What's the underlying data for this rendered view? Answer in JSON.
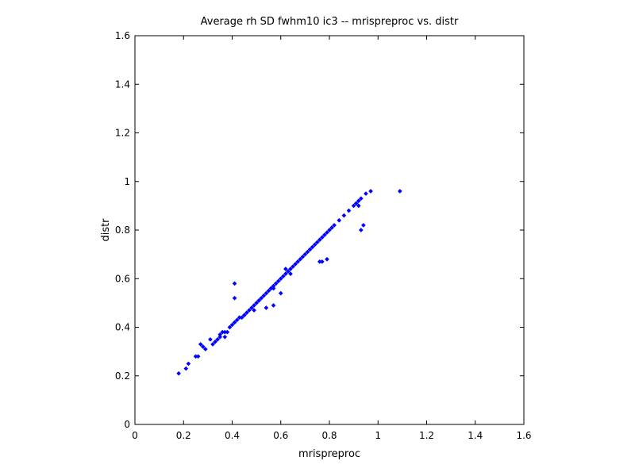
{
  "chart_data": {
    "type": "scatter",
    "title": "Average rh SD fwhm10 ic3 -- mrispreproc vs. distr",
    "xlabel": "mrispreproc",
    "ylabel": "distr",
    "xlim": [
      0,
      1.6
    ],
    "ylim": [
      0,
      1.6
    ],
    "xticks": [
      "0",
      "0.2",
      "0.4",
      "0.6",
      "0.8",
      "1",
      "1.2",
      "1.4",
      "1.6"
    ],
    "yticks": [
      "0",
      "0.2",
      "0.4",
      "0.6",
      "0.8",
      "1",
      "1.2",
      "1.4",
      "1.6"
    ],
    "grid": false,
    "marker_color": "#0000ff",
    "series": [
      {
        "x": [
          0.18,
          0.21,
          0.22,
          0.25,
          0.26,
          0.27,
          0.28,
          0.29,
          0.31,
          0.32,
          0.33,
          0.34,
          0.35,
          0.36,
          0.37,
          0.38,
          0.39,
          0.4,
          0.41,
          0.42,
          0.43,
          0.44,
          0.45,
          0.46,
          0.47,
          0.48,
          0.49,
          0.5,
          0.51,
          0.52,
          0.53,
          0.54,
          0.55,
          0.56,
          0.57,
          0.58,
          0.59,
          0.6,
          0.61,
          0.62,
          0.63,
          0.64,
          0.65,
          0.66,
          0.67,
          0.68,
          0.69,
          0.7,
          0.71,
          0.72,
          0.73,
          0.74,
          0.75,
          0.76,
          0.77,
          0.78,
          0.79,
          0.8,
          0.81,
          0.82,
          0.84,
          0.86,
          0.88,
          0.9,
          0.91,
          0.92,
          0.93,
          0.95,
          0.97,
          1.09,
          0.41,
          0.41,
          0.54,
          0.57,
          0.56,
          0.6,
          0.57,
          0.76,
          0.77,
          0.79,
          0.93,
          0.94,
          0.92,
          0.62,
          0.64,
          0.45,
          0.49,
          0.51,
          0.35,
          0.37
        ],
        "y": [
          0.21,
          0.23,
          0.25,
          0.28,
          0.28,
          0.33,
          0.32,
          0.31,
          0.35,
          0.33,
          0.34,
          0.35,
          0.36,
          0.38,
          0.38,
          0.38,
          0.4,
          0.41,
          0.42,
          0.43,
          0.44,
          0.44,
          0.45,
          0.46,
          0.47,
          0.48,
          0.49,
          0.5,
          0.51,
          0.52,
          0.53,
          0.54,
          0.55,
          0.56,
          0.57,
          0.58,
          0.59,
          0.6,
          0.61,
          0.62,
          0.63,
          0.64,
          0.65,
          0.66,
          0.67,
          0.68,
          0.69,
          0.7,
          0.71,
          0.72,
          0.73,
          0.74,
          0.75,
          0.76,
          0.77,
          0.78,
          0.79,
          0.8,
          0.81,
          0.82,
          0.84,
          0.86,
          0.88,
          0.9,
          0.91,
          0.92,
          0.93,
          0.95,
          0.96,
          0.96,
          0.58,
          0.52,
          0.48,
          0.49,
          0.56,
          0.54,
          0.56,
          0.67,
          0.67,
          0.68,
          0.8,
          0.82,
          0.9,
          0.64,
          0.62,
          0.45,
          0.47,
          0.51,
          0.37,
          0.36
        ]
      }
    ]
  }
}
